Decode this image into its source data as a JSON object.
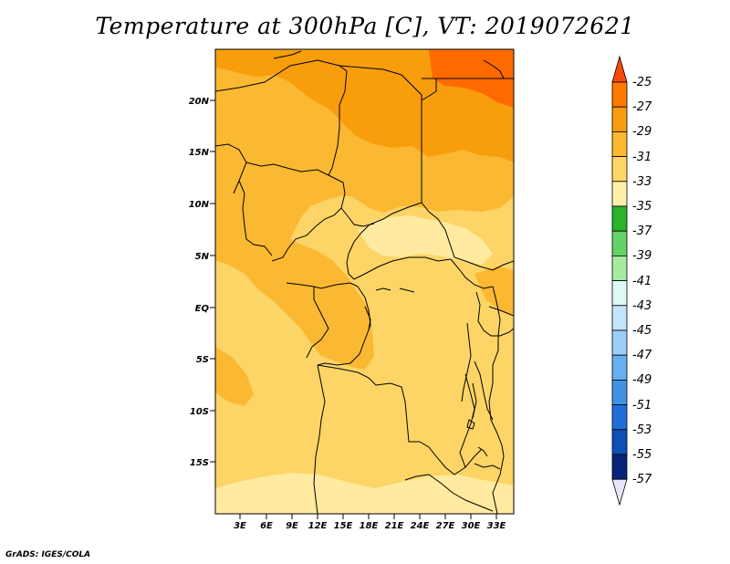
{
  "title": "Temperature at 300hPa [C], VT: 2019072621",
  "credit": "GrADS: IGES/COLA",
  "map": {
    "lat_labels": [
      "20N",
      "15N",
      "10N",
      "5N",
      "EQ",
      "5S",
      "10S",
      "15S"
    ],
    "lon_labels": [
      "3E",
      "6E",
      "9E",
      "12E",
      "15E",
      "18E",
      "21E",
      "24E",
      "27E",
      "30E",
      "33E"
    ],
    "fill_colors": {
      "t_minus25_27": "#ff6a00",
      "t_minus27_29": "#f89d0c",
      "t_minus29_31": "#fbb832",
      "t_minus31_33": "#fdd466",
      "t_minus33_35": "#ffeaa0"
    }
  },
  "colorbar": {
    "labels": [
      "-25",
      "-27",
      "-29",
      "-31",
      "-33",
      "-35",
      "-37",
      "-39",
      "-41",
      "-43",
      "-45",
      "-47",
      "-49",
      "-51",
      "-53",
      "-55",
      "-57"
    ],
    "colors": [
      "#fa4a0a",
      "#ff7a00",
      "#f99c0e",
      "#fbb833",
      "#fdd665",
      "#fef0a8",
      "#2bb32b",
      "#64d264",
      "#a6eaa2",
      "#dff8f6",
      "#c4e4fb",
      "#9ccdf7",
      "#66b0f0",
      "#3f93e4",
      "#1e70d6",
      "#0e4fb8",
      "#07247a",
      "#e8e4fa"
    ]
  }
}
